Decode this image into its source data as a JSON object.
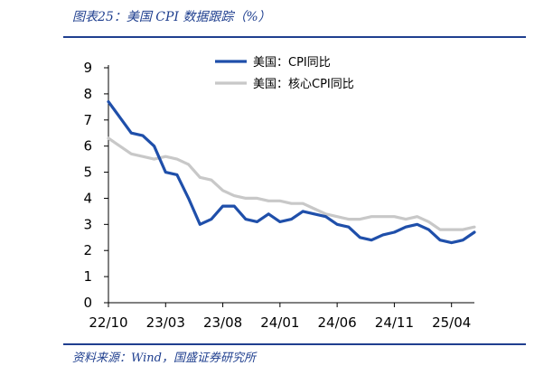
{
  "header": {
    "title": "图表25：美国 CPI 数据跟踪（%）"
  },
  "footer": {
    "source": "资料来源：Wind，国盛证券研究所"
  },
  "colors": {
    "accent": "#1f3f8f",
    "series_cpi": "#1f4faa",
    "series_core": "#c8c8c8"
  },
  "chart_data": {
    "type": "line",
    "title": "",
    "xlabel": "",
    "ylabel": "",
    "ylim": [
      0,
      9
    ],
    "yticks": [
      "0",
      "1",
      "2",
      "3",
      "4",
      "5",
      "6",
      "7",
      "8",
      "9"
    ],
    "xticks": [
      "22/10",
      "23/03",
      "23/08",
      "24/01",
      "24/06",
      "24/11",
      "25/04"
    ],
    "grid": false,
    "legend_position": "top",
    "x": [
      "22/10",
      "22/11",
      "22/12",
      "23/01",
      "23/02",
      "23/03",
      "23/04",
      "23/05",
      "23/06",
      "23/07",
      "23/08",
      "23/09",
      "23/10",
      "23/11",
      "23/12",
      "24/01",
      "24/02",
      "24/03",
      "24/04",
      "24/05",
      "24/06",
      "24/07",
      "24/08",
      "24/09",
      "24/10",
      "24/11",
      "24/12",
      "25/01",
      "25/02",
      "25/03",
      "25/04",
      "25/05",
      "25/06"
    ],
    "series": [
      {
        "name": "美国：CPI同比",
        "values": [
          7.7,
          7.1,
          6.5,
          6.4,
          6.0,
          5.0,
          4.9,
          4.0,
          3.0,
          3.2,
          3.7,
          3.7,
          3.2,
          3.1,
          3.4,
          3.1,
          3.2,
          3.5,
          3.4,
          3.3,
          3.0,
          2.9,
          2.5,
          2.4,
          2.6,
          2.7,
          2.9,
          3.0,
          2.8,
          2.4,
          2.3,
          2.4,
          2.7
        ]
      },
      {
        "name": "美国：核心CPI同比",
        "values": [
          6.3,
          6.0,
          5.7,
          5.6,
          5.5,
          5.6,
          5.5,
          5.3,
          4.8,
          4.7,
          4.3,
          4.1,
          4.0,
          4.0,
          3.9,
          3.9,
          3.8,
          3.8,
          3.6,
          3.4,
          3.3,
          3.2,
          3.2,
          3.3,
          3.3,
          3.3,
          3.2,
          3.3,
          3.1,
          2.8,
          2.8,
          2.8,
          2.9
        ]
      }
    ]
  }
}
